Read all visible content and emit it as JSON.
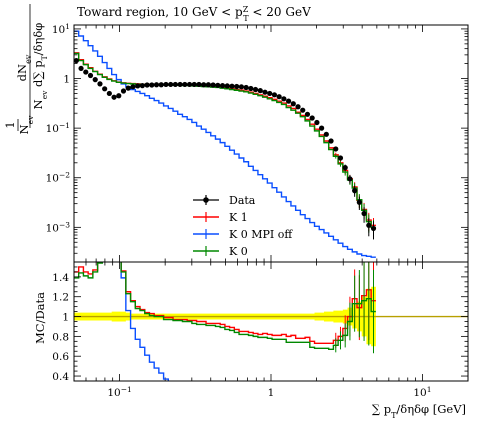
{
  "chart_data": {
    "type": "line",
    "title": "Toward region, 10 GeV < p",
    "title_sup": "Z",
    "title_sub": "T",
    "title_tail": " < 20 GeV",
    "xlabel": "∑ p",
    "xlabel_sub": "T",
    "xlabel_tail": "/δηδφ [GeV]",
    "ylabel_main_num": "dN",
    "ylabel_main_num_sub": "ev",
    "ylabel_main_den": "N",
    "ylabel_main_den_sub": "ev",
    "ylabel_main_den_tail": " d∑ p",
    "ylabel_main_den_tail_sub": "T",
    "ylabel_main_den_tail2": "/δηδφ",
    "ylabel_main_one": "1",
    "ylabel_ratio": "MC/Data",
    "x_scale": "log",
    "y_scale": "log",
    "xlim": [
      0.05,
      20
    ],
    "ylim_main": [
      0.0002,
      12
    ],
    "ylim_ratio": [
      0.35,
      1.55
    ],
    "x_ticks": [
      {
        "value": 0.1,
        "label": "10",
        "sup": "−1"
      },
      {
        "value": 1,
        "label": "1",
        "sup": ""
      },
      {
        "value": 10,
        "label": "10",
        "sup": "1"
      }
    ],
    "y_ticks_main": [
      {
        "value": 10,
        "label": "10",
        "sup": "1"
      },
      {
        "value": 1,
        "label": "1",
        "sup": ""
      },
      {
        "value": 0.1,
        "label": "10",
        "sup": "−1"
      },
      {
        "value": 0.01,
        "label": "10",
        "sup": "−2"
      },
      {
        "value": 0.001,
        "label": "10",
        "sup": "−3"
      }
    ],
    "y_ticks_ratio": [
      {
        "value": 1.4,
        "label": "1.4"
      },
      {
        "value": 1.2,
        "label": "1.2"
      },
      {
        "value": 1.0,
        "label": "1"
      },
      {
        "value": 0.8,
        "label": "0.8"
      },
      {
        "value": 0.6,
        "label": "0.6"
      },
      {
        "value": 0.4,
        "label": "0.4"
      }
    ],
    "legend_position": "lower-center",
    "colors": {
      "data": "#000000",
      "k1": "#ff0000",
      "k0_mpi_off": "#0a4fff",
      "k0": "#008800",
      "band": "#ffff00",
      "unity": "#b8a000"
    },
    "legend": [
      {
        "key": "data",
        "label": "Data"
      },
      {
        "key": "k1",
        "label": "K 1"
      },
      {
        "key": "k0_mpi_off",
        "label": "K 0 MPI off"
      },
      {
        "key": "k0",
        "label": "K 0"
      }
    ],
    "x_edges": [
      0.05,
      0.0537,
      0.0577,
      0.062,
      0.0666,
      0.0716,
      0.0769,
      0.0826,
      0.0887,
      0.0953,
      0.1024,
      0.11,
      0.1182,
      0.127,
      0.1364,
      0.1466,
      0.1575,
      0.1692,
      0.1817,
      0.1953,
      0.2098,
      0.2254,
      0.2421,
      0.2601,
      0.2795,
      0.3003,
      0.3226,
      0.3466,
      0.3723,
      0.4,
      0.4298,
      0.4617,
      0.4961,
      0.533,
      0.5726,
      0.6152,
      0.661,
      0.7101,
      0.7629,
      0.8197,
      0.8806,
      0.9461,
      1.0165,
      1.0921,
      1.1733,
      1.2606,
      1.3543,
      1.4551,
      1.5633,
      1.6796,
      1.8045,
      1.9387,
      2.0829,
      2.2378,
      2.4043,
      2.583,
      2.7752,
      2.9816,
      3.2033,
      3.4416,
      3.6976,
      3.9726,
      4.268,
      4.5855,
      4.9266
    ],
    "series": [
      {
        "name": "Data",
        "values": [
          2.3,
          1.6,
          1.35,
          1.15,
          0.95,
          0.78,
          0.62,
          0.5,
          0.42,
          0.45,
          0.56,
          0.64,
          0.68,
          0.71,
          0.72,
          0.74,
          0.74,
          0.75,
          0.75,
          0.76,
          0.76,
          0.76,
          0.76,
          0.76,
          0.76,
          0.76,
          0.76,
          0.75,
          0.75,
          0.74,
          0.73,
          0.72,
          0.71,
          0.7,
          0.69,
          0.68,
          0.66,
          0.63,
          0.6,
          0.57,
          0.53,
          0.5,
          0.47,
          0.43,
          0.39,
          0.35,
          0.31,
          0.27,
          0.23,
          0.19,
          0.16,
          0.13,
          0.1,
          0.075,
          0.055,
          0.038,
          0.025,
          0.016,
          0.0095,
          0.0055,
          0.0032,
          0.0019,
          0.0011,
          0.00095
        ]
      },
      {
        "name": "K 1",
        "values": [
          3.3,
          2.4,
          1.95,
          1.65,
          1.4,
          1.22,
          1.08,
          0.98,
          0.9,
          0.85,
          0.82,
          0.8,
          0.79,
          0.78,
          0.77,
          0.77,
          0.76,
          0.76,
          0.76,
          0.75,
          0.75,
          0.74,
          0.74,
          0.74,
          0.73,
          0.73,
          0.72,
          0.71,
          0.7,
          0.69,
          0.68,
          0.66,
          0.64,
          0.62,
          0.6,
          0.58,
          0.56,
          0.53,
          0.5,
          0.47,
          0.44,
          0.41,
          0.38,
          0.35,
          0.32,
          0.28,
          0.25,
          0.21,
          0.18,
          0.15,
          0.12,
          0.095,
          0.073,
          0.055,
          0.04,
          0.029,
          0.02,
          0.014,
          0.0095,
          0.0065,
          0.0035,
          0.0023,
          0.0014,
          0.0011
        ]
      },
      {
        "name": "K 0 MPI off",
        "values": [
          9.0,
          7.2,
          5.8,
          4.6,
          3.6,
          2.8,
          2.1,
          1.6,
          1.2,
          0.95,
          0.78,
          0.68,
          0.6,
          0.55,
          0.5,
          0.45,
          0.4,
          0.36,
          0.32,
          0.28,
          0.25,
          0.22,
          0.19,
          0.17,
          0.15,
          0.13,
          0.11,
          0.095,
          0.082,
          0.07,
          0.06,
          0.051,
          0.043,
          0.036,
          0.03,
          0.025,
          0.021,
          0.017,
          0.014,
          0.0115,
          0.0095,
          0.0078,
          0.0063,
          0.0051,
          0.0041,
          0.0033,
          0.0027,
          0.0022,
          0.0018,
          0.0015,
          0.00125,
          0.00105,
          0.0009,
          0.00077,
          0.00066,
          0.00056,
          0.00048,
          0.00041,
          0.00036,
          0.00032,
          0.00029,
          0.00027,
          0.00026,
          0.00025
        ]
      },
      {
        "name": "K 0",
        "values": [
          3.2,
          2.3,
          1.9,
          1.6,
          1.38,
          1.2,
          1.06,
          0.96,
          0.89,
          0.84,
          0.81,
          0.79,
          0.78,
          0.77,
          0.76,
          0.76,
          0.75,
          0.75,
          0.75,
          0.74,
          0.74,
          0.73,
          0.73,
          0.72,
          0.72,
          0.71,
          0.7,
          0.69,
          0.68,
          0.67,
          0.66,
          0.64,
          0.62,
          0.6,
          0.58,
          0.56,
          0.54,
          0.51,
          0.48,
          0.45,
          0.42,
          0.39,
          0.36,
          0.33,
          0.3,
          0.26,
          0.23,
          0.2,
          0.17,
          0.14,
          0.11,
          0.088,
          0.068,
          0.051,
          0.037,
          0.027,
          0.019,
          0.013,
          0.009,
          0.0062,
          0.0036,
          0.0022,
          0.0013,
          0.001
        ]
      }
    ],
    "ratio_k1": [
      1.45,
      1.5,
      1.45,
      1.43,
      1.47,
      1.56,
      1.74,
      1.96,
      2.14,
      1.89,
      1.46,
      1.25,
      1.16,
      1.1,
      1.07,
      1.04,
      1.03,
      1.01,
      1.01,
      0.99,
      0.99,
      0.97,
      0.97,
      0.97,
      0.96,
      0.96,
      0.95,
      0.95,
      0.93,
      0.93,
      0.93,
      0.92,
      0.9,
      0.89,
      0.87,
      0.85,
      0.85,
      0.84,
      0.83,
      0.82,
      0.83,
      0.82,
      0.81,
      0.81,
      0.82,
      0.8,
      0.81,
      0.78,
      0.78,
      0.79,
      0.75,
      0.73,
      0.73,
      0.73,
      0.73,
      0.76,
      0.8,
      0.88,
      1.0,
      1.18,
      1.09,
      1.21,
      1.27,
      1.16
    ],
    "ratio_k0": [
      1.39,
      1.44,
      1.41,
      1.39,
      1.45,
      1.54,
      1.71,
      1.92,
      2.12,
      1.87,
      1.45,
      1.23,
      1.15,
      1.08,
      1.06,
      1.03,
      1.01,
      1.0,
      1.0,
      0.97,
      0.97,
      0.96,
      0.96,
      0.95,
      0.95,
      0.93,
      0.92,
      0.92,
      0.91,
      0.91,
      0.9,
      0.89,
      0.87,
      0.86,
      0.84,
      0.82,
      0.82,
      0.81,
      0.8,
      0.79,
      0.79,
      0.78,
      0.77,
      0.77,
      0.77,
      0.74,
      0.74,
      0.74,
      0.74,
      0.74,
      0.69,
      0.68,
      0.68,
      0.68,
      0.67,
      0.71,
      0.76,
      0.81,
      0.95,
      1.13,
      1.13,
      1.16,
      1.18,
      1.05
    ],
    "ratio_k0_mpi_off": [
      3.9,
      4.5,
      4.3,
      4.0,
      3.8,
      3.6,
      3.4,
      3.2,
      2.86,
      2.11,
      1.39,
      1.06,
      0.88,
      0.77,
      0.69,
      0.61,
      0.54,
      0.48,
      0.43,
      0.37,
      0.33,
      0.29,
      0.25,
      0.22,
      0.2,
      0.17,
      0.14,
      0.13,
      0.11,
      0.09,
      0.08,
      0.07,
      0.06,
      0.05,
      0.04,
      0.037,
      0.032,
      0.027,
      0.023,
      0.02,
      0.018,
      0.016,
      0.013,
      0.012,
      0.011,
      0.009,
      0.009,
      0.008,
      0.008,
      0.008,
      0.008,
      0.008,
      0.009,
      0.01,
      0.012,
      0.015,
      0.019,
      0.026,
      0.038,
      0.058,
      0.091,
      0.14,
      0.24,
      0.26
    ],
    "data_band_halfwidth": [
      0.04,
      0.04,
      0.04,
      0.04,
      0.04,
      0.04,
      0.04,
      0.04,
      0.05,
      0.05,
      0.05,
      0.04,
      0.03,
      0.03,
      0.03,
      0.03,
      0.03,
      0.03,
      0.03,
      0.03,
      0.03,
      0.03,
      0.03,
      0.03,
      0.03,
      0.03,
      0.03,
      0.03,
      0.03,
      0.03,
      0.03,
      0.03,
      0.03,
      0.03,
      0.03,
      0.03,
      0.03,
      0.03,
      0.03,
      0.03,
      0.03,
      0.03,
      0.03,
      0.03,
      0.03,
      0.03,
      0.03,
      0.03,
      0.03,
      0.03,
      0.03,
      0.04,
      0.04,
      0.05,
      0.05,
      0.06,
      0.06,
      0.07,
      0.09,
      0.12,
      0.15,
      0.2,
      0.28,
      0.3
    ],
    "data_err_frac": [
      0.05,
      0.05,
      0.05,
      0.05,
      0.05,
      0.05,
      0.05,
      0.05,
      0.05,
      0.05,
      0.05,
      0.05,
      0.05,
      0.05,
      0.05,
      0.05,
      0.05,
      0.05,
      0.05,
      0.05,
      0.05,
      0.05,
      0.05,
      0.05,
      0.05,
      0.05,
      0.05,
      0.05,
      0.05,
      0.05,
      0.05,
      0.05,
      0.05,
      0.05,
      0.05,
      0.05,
      0.05,
      0.05,
      0.05,
      0.05,
      0.05,
      0.05,
      0.05,
      0.05,
      0.05,
      0.05,
      0.05,
      0.05,
      0.05,
      0.05,
      0.05,
      0.06,
      0.06,
      0.07,
      0.08,
      0.1,
      0.12,
      0.15,
      0.2,
      0.25,
      0.3,
      0.35,
      0.4,
      0.4
    ]
  }
}
